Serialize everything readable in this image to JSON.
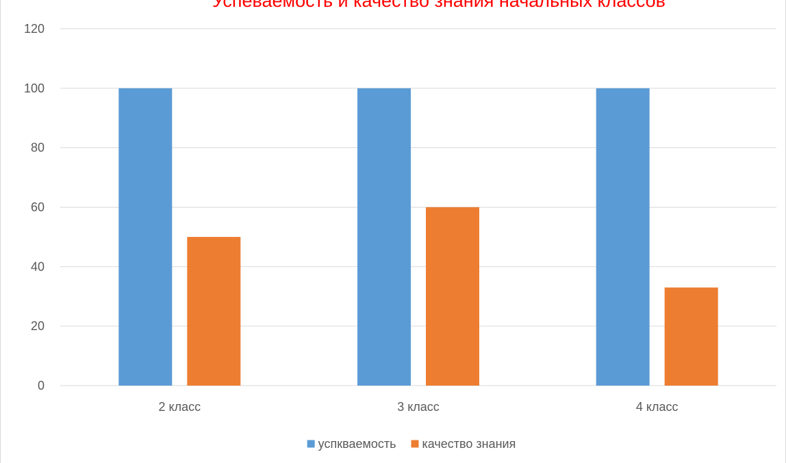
{
  "chart_data": {
    "type": "bar",
    "title": "Успеваемость и качество знания начальных классов",
    "categories": [
      "2 класс",
      "3 класс",
      "4 класс"
    ],
    "series": [
      {
        "name": "успкваемость",
        "values": [
          100,
          100,
          100
        ],
        "color": "#5b9bd5"
      },
      {
        "name": "качество знания",
        "values": [
          50,
          60,
          33
        ],
        "color": "#ed7d31"
      }
    ],
    "ylim": [
      0,
      120
    ],
    "yticks": [
      0,
      20,
      40,
      60,
      80,
      100,
      120
    ],
    "grid": true,
    "legend": "bottom"
  }
}
